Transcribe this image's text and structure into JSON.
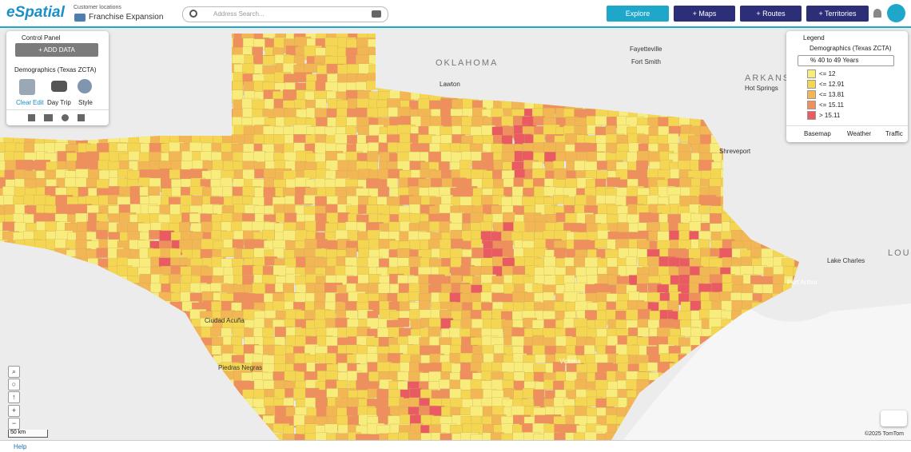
{
  "header": {
    "logo": "eSpatial",
    "subtitle": "Customer locations",
    "title": "Franchise Expansion",
    "search_placeholder": "Address Search...",
    "buttons": [
      "Explore",
      "+ Maps",
      "+ Routes",
      "+ Territories"
    ]
  },
  "control_panel": {
    "title": "Control Panel",
    "add_data": "ADD DATA",
    "layer": "Demographics (Texas ZCTA)",
    "actions": [
      "Clear",
      "Edit",
      "Day Trip",
      "Style"
    ]
  },
  "legend": {
    "title": "Legend",
    "layer": "Demographics (Texas ZCTA)",
    "field": "% 40 to 49 Years",
    "items": [
      {
        "label": "<= 12",
        "color": "#f8ec7c"
      },
      {
        "label": "<= 12.91",
        "color": "#f4d653"
      },
      {
        "label": "<= 13.81",
        "color": "#f2b655"
      },
      {
        "label": "<= 15.11",
        "color": "#f08f5e"
      },
      {
        "label": "> 15.11",
        "color": "#ea5a62"
      }
    ],
    "tabs": [
      "Basemap",
      "Weather",
      "Traffic"
    ]
  },
  "map": {
    "labels": [
      "OKLAHOMA",
      "ARKANSAS",
      "Lawton",
      "Fayetteville",
      "Fort Smith",
      "Hot Springs",
      "Shreveport",
      "Lake Charles",
      "Port Arthur",
      "Ciudad Acuña",
      "Piedras Negras",
      "Victoria",
      "LOU"
    ],
    "scale": "50 km",
    "attribution": "©2025 TomTom"
  },
  "footer": {
    "help": "Help"
  }
}
